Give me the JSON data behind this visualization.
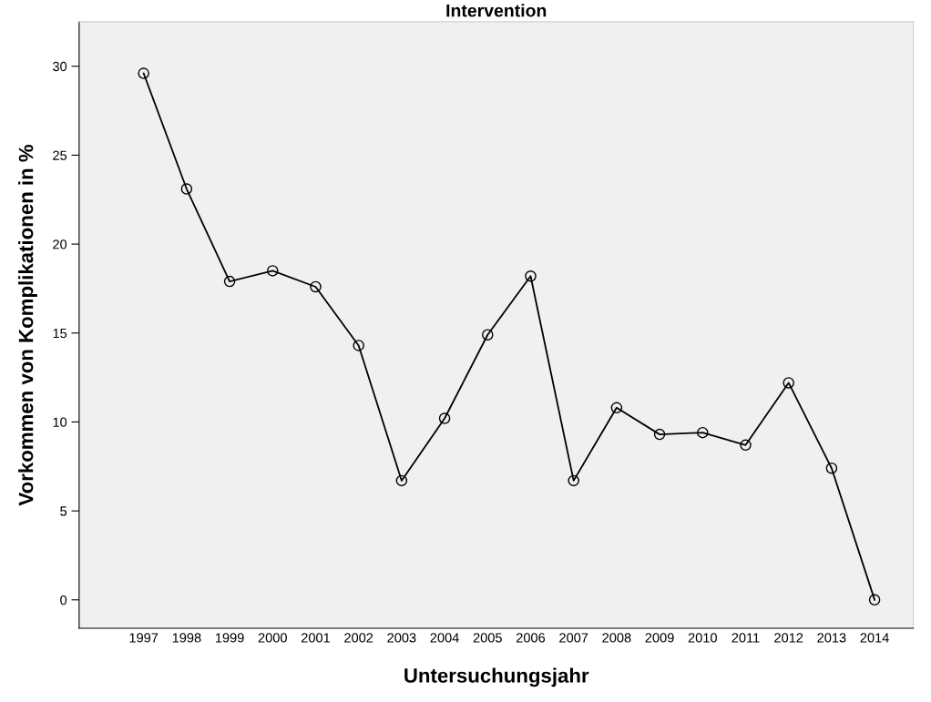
{
  "chart_data": {
    "type": "line",
    "title": "Intervention",
    "xlabel": "Untersuchungsjahr",
    "ylabel": "Vorkommen von Komplikationen in %",
    "categories": [
      "1997",
      "1998",
      "1999",
      "2000",
      "2001",
      "2002",
      "2003",
      "2004",
      "2005",
      "2006",
      "2007",
      "2008",
      "2009",
      "2010",
      "2011",
      "2012",
      "2013",
      "2014"
    ],
    "series": [
      {
        "color": "#000000",
        "values": [
          29.6,
          23.1,
          17.9,
          18.5,
          17.6,
          14.3,
          6.7,
          10.2,
          14.9,
          18.2,
          6.7,
          10.8,
          9.3,
          9.4,
          8.7,
          12.2,
          7.4,
          0
        ]
      }
    ],
    "ylim": [
      -1.6,
      32.5
    ],
    "yticks": [
      0,
      5,
      10,
      15,
      20,
      25,
      30
    ],
    "marker": "circle",
    "line_style": "solid",
    "grid": false,
    "legend": false
  }
}
